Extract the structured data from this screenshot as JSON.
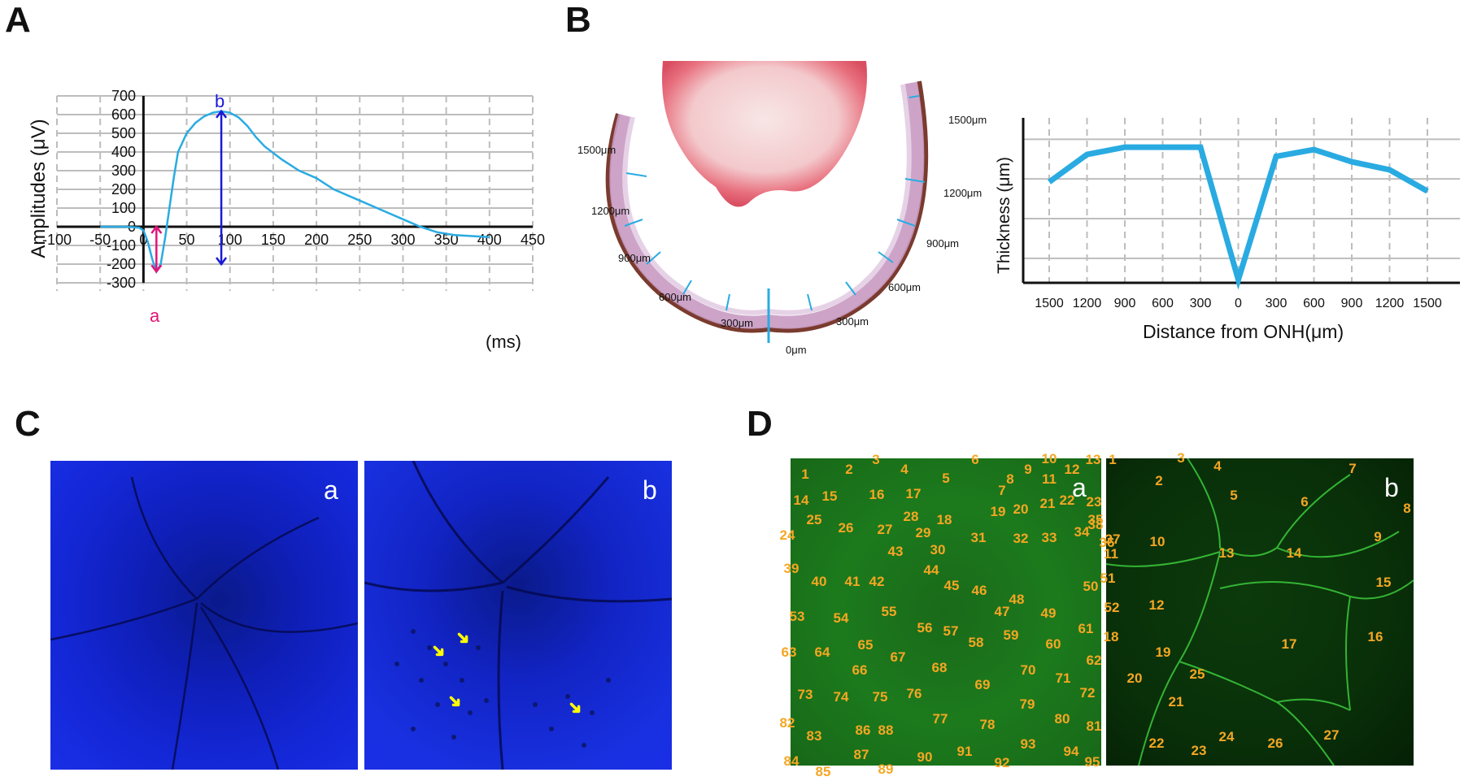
{
  "panels": {
    "A": "A",
    "B": "B",
    "C": "C",
    "D": "D"
  },
  "panelA": {
    "ylabel": "Amplitudes (μV)",
    "xunit": "(ms)",
    "label_a": "a",
    "label_b": "b",
    "color_trace": "#29abe2",
    "color_a": "#e0157a",
    "color_b": "#1a1ad6"
  },
  "panelB": {
    "scale_labels_left": [
      "1500μm",
      "1200μm",
      "900μm",
      "600μm",
      "300μm"
    ],
    "scale_labels_right": [
      "1500μm",
      "1200μm",
      "900μm",
      "600μm",
      "300μm"
    ],
    "scale_label_center": "0μm",
    "ylabel": "Thickness (μm)",
    "xlabel": "Distance from ONH(μm)",
    "color_line": "#29abe2"
  },
  "chart_data": [
    {
      "type": "line",
      "xlabel": "(ms)",
      "ylabel": "Amplitudes (μV)",
      "xlim": [
        -100,
        450
      ],
      "ylim": [
        -300,
        700
      ],
      "x_ticks": [
        -100,
        -50,
        0,
        50,
        100,
        150,
        200,
        250,
        300,
        350,
        400,
        450
      ],
      "y_ticks": [
        700,
        600,
        500,
        400,
        300,
        200,
        100,
        0,
        -100,
        -200,
        -300
      ],
      "series": [
        {
          "x": [
            -50,
            -20,
            -5,
            0,
            5,
            10,
            15,
            20,
            25,
            30,
            35,
            40,
            50,
            60,
            70,
            80,
            90,
            100,
            110,
            120,
            130,
            140,
            160,
            180,
            200,
            220,
            250,
            280,
            300,
            320,
            340,
            360,
            380,
            400
          ],
          "values": [
            0,
            0,
            -5,
            -20,
            -80,
            -170,
            -240,
            -200,
            -60,
            100,
            260,
            400,
            500,
            555,
            590,
            610,
            618,
            610,
            585,
            540,
            480,
            430,
            360,
            300,
            260,
            200,
            140,
            80,
            40,
            0,
            -30,
            -45,
            -50,
            -55
          ]
        }
      ],
      "annotations": {
        "a": {
          "x": 15,
          "from": 0,
          "to": -240
        },
        "b": {
          "x": 90,
          "from": -200,
          "to": 618
        }
      }
    },
    {
      "type": "line",
      "xlabel": "Distance from ONH(μm)",
      "ylabel": "Thickness (μm)",
      "categories": [
        "1500",
        "1200",
        "900",
        "600",
        "300",
        "0",
        "300",
        "600",
        "900",
        "1200",
        "1500"
      ],
      "values": [
        165,
        210,
        222,
        222,
        222,
        5,
        207,
        218,
        198,
        185,
        150
      ],
      "ylim": [
        0,
        270
      ],
      "grid_levels": [
        40,
        105,
        170,
        235
      ]
    }
  ],
  "panelC": {
    "tag_a": "a",
    "tag_b": "b",
    "arrow_color": "#ffff00"
  },
  "panelD": {
    "tag_a": "a",
    "tag_b": "b",
    "numbers_a": [
      "1",
      "2",
      "3",
      "4",
      "5",
      "6",
      "7",
      "8",
      "9",
      "10",
      "11",
      "12",
      "13",
      "14",
      "15",
      "16",
      "17",
      "18",
      "19",
      "20",
      "21",
      "22",
      "23",
      "24",
      "25",
      "26",
      "27",
      "28",
      "29",
      "30",
      "31",
      "32",
      "33",
      "34",
      "35",
      "36",
      "37",
      "38",
      "39",
      "40",
      "41",
      "42",
      "43",
      "44",
      "45",
      "46",
      "47",
      "48",
      "49",
      "50",
      "51",
      "52",
      "53",
      "54",
      "55",
      "56",
      "57",
      "58",
      "59",
      "60",
      "61",
      "62",
      "63",
      "64",
      "65",
      "66",
      "67",
      "68",
      "69",
      "70",
      "71",
      "72",
      "73",
      "74",
      "75",
      "76",
      "77",
      "78",
      "79",
      "80",
      "81",
      "82",
      "83",
      "84",
      "85",
      "86",
      "87",
      "88",
      "89",
      "90",
      "91",
      "92",
      "93",
      "94",
      "95"
    ],
    "numbers_b": [
      "1",
      "2",
      "3",
      "4",
      "5",
      "6",
      "7",
      "8",
      "9",
      "10",
      "11",
      "12",
      "13",
      "14",
      "15",
      "16",
      "17",
      "18",
      "19",
      "20",
      "21",
      "22",
      "23",
      "24",
      "25",
      "26",
      "27"
    ],
    "number_color": "#f5a623"
  }
}
